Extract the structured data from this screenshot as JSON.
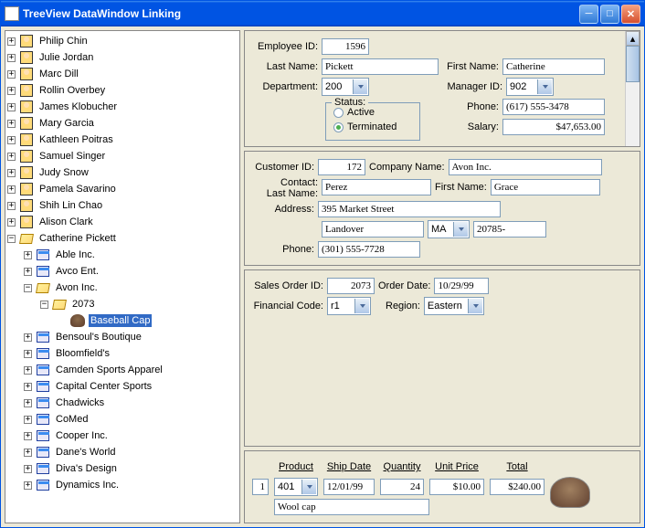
{
  "window": {
    "title": "TreeView DataWindow Linking"
  },
  "tree": {
    "people": [
      {
        "label": "Philip  Chin",
        "exp": "+"
      },
      {
        "label": "Julie  Jordan",
        "exp": "+"
      },
      {
        "label": "Marc  Dill",
        "exp": "+"
      },
      {
        "label": "Rollin  Overbey",
        "exp": "+"
      },
      {
        "label": "James  Klobucher",
        "exp": "+"
      },
      {
        "label": "Mary  Garcia",
        "exp": "+"
      },
      {
        "label": "Kathleen  Poitras",
        "exp": "+"
      },
      {
        "label": "Samuel  Singer",
        "exp": "+"
      },
      {
        "label": "Judy  Snow",
        "exp": "+"
      },
      {
        "label": "Pamela  Savarino",
        "exp": "+"
      },
      {
        "label": "Shih Lin  Chao",
        "exp": "+"
      },
      {
        "label": "Alison  Clark",
        "exp": "+"
      }
    ],
    "selected_person": "Catherine  Pickett",
    "companies_before": [
      {
        "label": "Able Inc.",
        "exp": "+"
      },
      {
        "label": "Avco Ent.",
        "exp": "+"
      }
    ],
    "open_company": "Avon Inc.",
    "open_order": "2073",
    "open_product": "Baseball Cap",
    "companies_after": [
      {
        "label": "Bensoul's Boutique",
        "exp": "+"
      },
      {
        "label": "Bloomfield's",
        "exp": "+"
      },
      {
        "label": "Camden Sports Apparel",
        "exp": "+"
      },
      {
        "label": "Capital Center Sports",
        "exp": "+"
      },
      {
        "label": "Chadwicks",
        "exp": "+"
      },
      {
        "label": "CoMed",
        "exp": "+"
      },
      {
        "label": "Cooper Inc.",
        "exp": "+"
      },
      {
        "label": "Dane's World",
        "exp": "+"
      },
      {
        "label": "Diva's Design",
        "exp": "+"
      },
      {
        "label": "Dynamics Inc.",
        "exp": "+"
      }
    ]
  },
  "employee": {
    "labels": {
      "id": "Employee ID:",
      "last": "Last Name:",
      "first": "First Name:",
      "dept": "Department:",
      "mgr": "Manager ID:",
      "phone": "Phone:",
      "salary": "Salary:",
      "status": "Status:",
      "active": "Active",
      "term": "Terminated"
    },
    "id": "1596",
    "last": "Pickett",
    "first": "Catherine",
    "dept": "200",
    "mgr": "902",
    "phone": "(617) 555-3478",
    "salary": "$47,653.00"
  },
  "customer": {
    "labels": {
      "id": "Customer ID:",
      "company": "Company Name:",
      "contact": "Contact:",
      "last": "Last Name:",
      "first": "First Name:",
      "addr": "Address:",
      "phone": "Phone:"
    },
    "id": "172",
    "company": "Avon Inc.",
    "last": "Perez",
    "first": "Grace",
    "addr": "395 Market Street",
    "city": "Landover",
    "state": "MA",
    "zip": "20785-",
    "phone": "(301) 555-7728"
  },
  "order": {
    "labels": {
      "id": "Sales Order ID:",
      "date": "Order Date:",
      "fin": "Financial Code:",
      "region": "Region:"
    },
    "id": "2073",
    "date": "10/29/99",
    "fin": "r1",
    "region": "Eastern"
  },
  "lineitem": {
    "headers": {
      "product": "Product",
      "ship": "Ship Date",
      "qty": "Quantity",
      "price": "Unit Price",
      "total": "Total"
    },
    "num": "1",
    "product": "401",
    "ship": "12/01/99",
    "qty": "24",
    "price": "$10.00",
    "total": "$240.00",
    "desc": "Wool cap"
  }
}
